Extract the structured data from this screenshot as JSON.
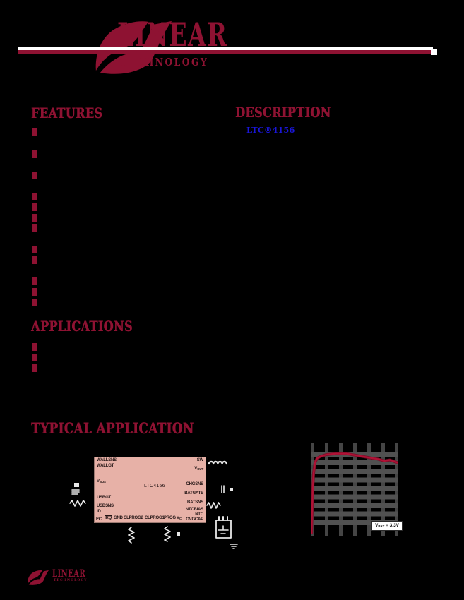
{
  "page": {
    "background": "#000000"
  },
  "colors": {
    "brand_maroon": "#8E1232",
    "link_blue": "#1A16DA",
    "chip_fill": "#E7B1A7",
    "grid_gray": "#4F4F4F",
    "curve_red": "#B11236"
  },
  "header": {
    "logo": {
      "brand_top": "LINEAR",
      "brand_bottom": "TECHNOLOGY"
    }
  },
  "sections": {
    "features": {
      "title": "FEATURES",
      "bullet_count": 12
    },
    "description": {
      "title": "DESCRIPTION",
      "link_text": "LTC®4156"
    },
    "applications": {
      "title": "APPLICATIONS",
      "bullet_count": 3
    },
    "typical_application": {
      "title": "TYPICAL APPLICATION"
    }
  },
  "circuit": {
    "chip": {
      "name": "LTC4156",
      "pins_left": [
        {
          "text": "WALLSNS"
        },
        {
          "text": "WALLGT"
        },
        {
          "text": "V~BUS~"
        },
        {
          "text": "USBGT"
        },
        {
          "text": "USBSNS"
        },
        {
          "text": "ID"
        }
      ],
      "pins_bottom": [
        {
          "text": "I^2^C"
        },
        {
          "text": "IRQ",
          "overline": true
        },
        {
          "text": "GND"
        },
        {
          "text": "CLPROG2"
        },
        {
          "text": "CLPROG1"
        },
        {
          "text": "PROG"
        },
        {
          "text": "V~C~"
        }
      ],
      "pins_right": [
        {
          "text": "SW"
        },
        {
          "text": "V~OUT~"
        },
        {
          "text": "CHGSNS"
        },
        {
          "text": "BATGATE"
        },
        {
          "text": "BATSNS"
        },
        {
          "text": "NTCBIAS"
        },
        {
          "text": "NTC"
        },
        {
          "text": "OVGCAP"
        }
      ],
      "components": [
        "inductor-icon",
        "resistor-icon",
        "capacitor-icon",
        "battery-icon",
        "ground-icon",
        "usb-connector-icon"
      ]
    }
  },
  "chart_data": {
    "type": "line",
    "title": "",
    "xlabel": "",
    "ylabel": "",
    "grid": true,
    "gridlines": {
      "horizontal_bands": 9,
      "vertical_bars": 7
    },
    "annotation": "V~BAT~ = 3.3V",
    "series": [
      {
        "name": "efficiency-curve",
        "color": "#B11236",
        "points_frac": [
          [
            0.008,
            0.0
          ],
          [
            0.016,
            0.29
          ],
          [
            0.024,
            0.53
          ],
          [
            0.033,
            0.69
          ],
          [
            0.049,
            0.8
          ],
          [
            0.073,
            0.85
          ],
          [
            0.114,
            0.87
          ],
          [
            0.18,
            0.89
          ],
          [
            0.29,
            0.9
          ],
          [
            0.41,
            0.9
          ],
          [
            0.53,
            0.88
          ],
          [
            0.65,
            0.86
          ],
          [
            0.77,
            0.84
          ],
          [
            0.85,
            0.82
          ],
          [
            0.91,
            0.83
          ],
          [
            1.0,
            0.8
          ]
        ]
      }
    ]
  },
  "footer": {
    "logo": {
      "brand_top": "LINEAR",
      "brand_bottom": "TECHNOLOGY"
    }
  }
}
